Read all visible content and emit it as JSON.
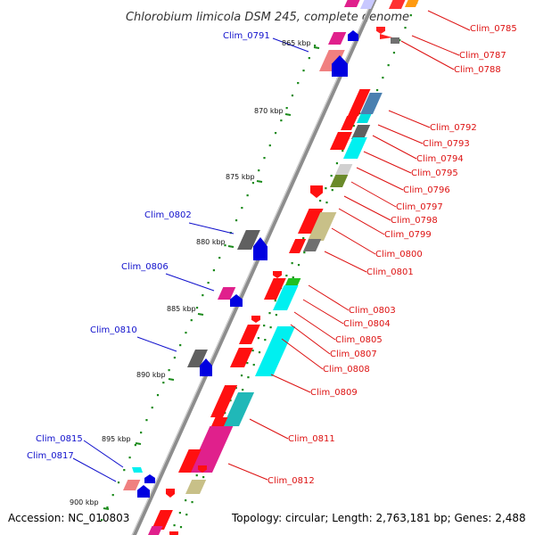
{
  "title": "Chlorobium limicola DSM 245, complete genome",
  "footer": {
    "accession": "Accession: NC_010803",
    "topology": "Topology: circular; Length: 2,763,181 bp; Genes: 2,488"
  },
  "colors": {
    "backbone": "#8c8c8c",
    "tick": "#1a8a1a",
    "right_label": "#dd1111",
    "left_label": "#1010cc"
  },
  "scale_ticks": [
    "865 kbp",
    "870 kbp",
    "875 kbp",
    "880 kbp",
    "885 kbp",
    "890 kbp",
    "895 kbp",
    "900 kbp"
  ],
  "gene_labels_right": [
    "Clim_0785",
    "Clim_0787",
    "Clim_0788",
    "Clim_0792",
    "Clim_0793",
    "Clim_0794",
    "Clim_0795",
    "Clim_0796",
    "Clim_0797",
    "Clim_0798",
    "Clim_0799",
    "Clim_0800",
    "Clim_0801",
    "Clim_0803",
    "Clim_0804",
    "Clim_0805",
    "Clim_0807",
    "Clim_0808",
    "Clim_0809",
    "Clim_0811",
    "Clim_0812"
  ],
  "gene_labels_left": [
    "Clim_0791",
    "Clim_0802",
    "Clim_0806",
    "Clim_0810",
    "Clim_0815",
    "Clim_0817"
  ]
}
